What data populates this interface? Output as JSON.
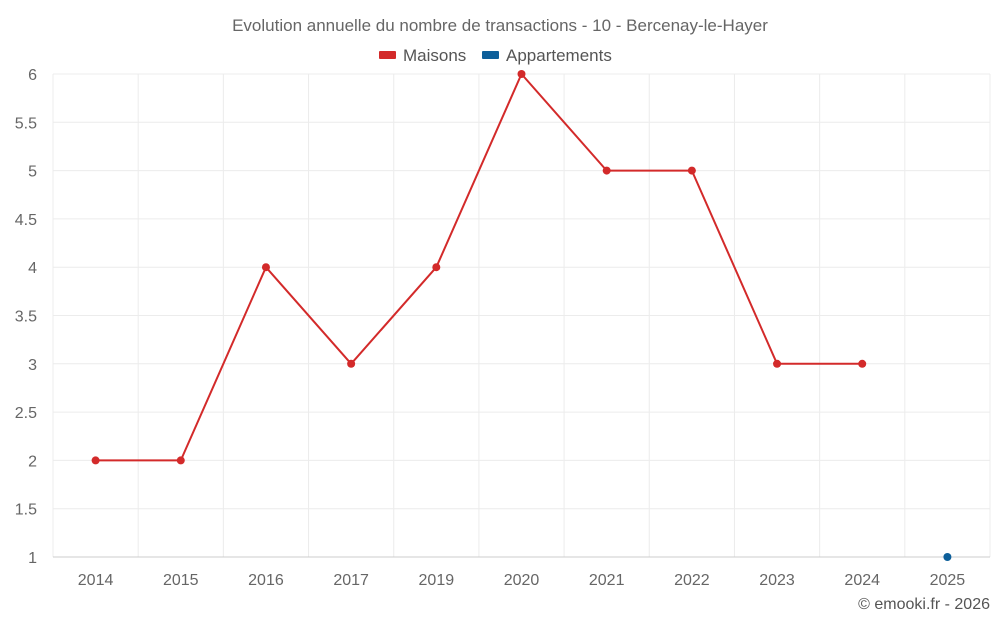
{
  "chart_data": {
    "type": "line",
    "title": "Evolution annuelle du nombre de transactions - 10 - Bercenay-le-Hayer",
    "categories": [
      "2014",
      "2015",
      "2016",
      "2017",
      "2019",
      "2020",
      "2021",
      "2022",
      "2023",
      "2024",
      "2025"
    ],
    "series": [
      {
        "name": "Maisons",
        "color": "#d32a2a",
        "values": [
          2,
          2,
          4,
          3,
          4,
          6,
          5,
          5,
          3,
          3,
          null
        ]
      },
      {
        "name": "Appartements",
        "color": "#0d5f9a",
        "values": [
          null,
          null,
          null,
          null,
          null,
          null,
          null,
          null,
          null,
          null,
          1
        ]
      }
    ],
    "y_ticks": [
      "1",
      "1.5",
      "2",
      "2.5",
      "3",
      "3.5",
      "4",
      "4.5",
      "5",
      "5.5",
      "6"
    ],
    "ylim": [
      1,
      6
    ],
    "xlabel": "",
    "ylabel": "",
    "grid": true,
    "legend_position": "top-center"
  },
  "credit": "© emooki.fr - 2026"
}
